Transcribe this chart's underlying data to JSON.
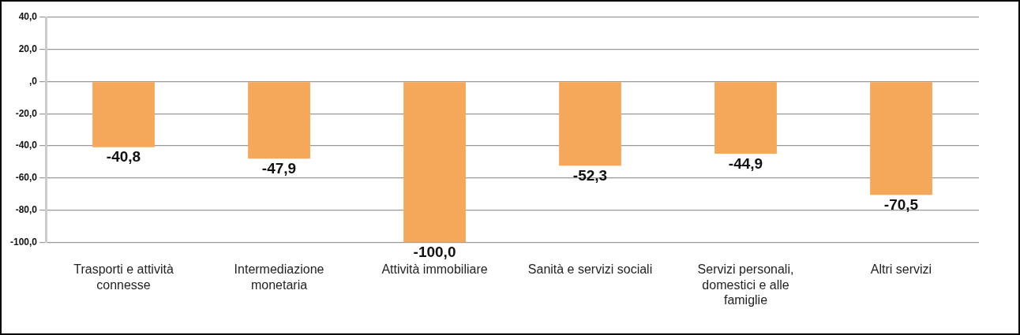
{
  "chart_data": {
    "type": "bar",
    "categories": [
      "Trasporti e attività connesse",
      "Intermediazione monetaria",
      "Attività immobiliare",
      "Sanità e servizi sociali",
      "Servizi personali, domestici e alle famiglie",
      "Altri servizi"
    ],
    "values": [
      -40.8,
      -47.9,
      -100.0,
      -52.3,
      -44.9,
      -70.5
    ],
    "color": "#f6a85a",
    "value_labels": [
      "-40,8",
      "-47,9",
      "-100,0",
      "-52,3",
      "-44,9",
      "-70,5"
    ],
    "ylim": [
      -100,
      40
    ],
    "yticks": [
      {
        "value": -100,
        "label": "-100,0"
      },
      {
        "value": -80,
        "label": "-80,0"
      },
      {
        "value": -60,
        "label": "-60,0"
      },
      {
        "value": -40,
        "label": "-40,0"
      },
      {
        "value": -20,
        "label": "-20,0"
      },
      {
        "value": 0,
        "label": ",0"
      },
      {
        "value": 20,
        "label": "20,0"
      },
      {
        "value": 40,
        "label": "40,0"
      }
    ],
    "grid": "y"
  }
}
